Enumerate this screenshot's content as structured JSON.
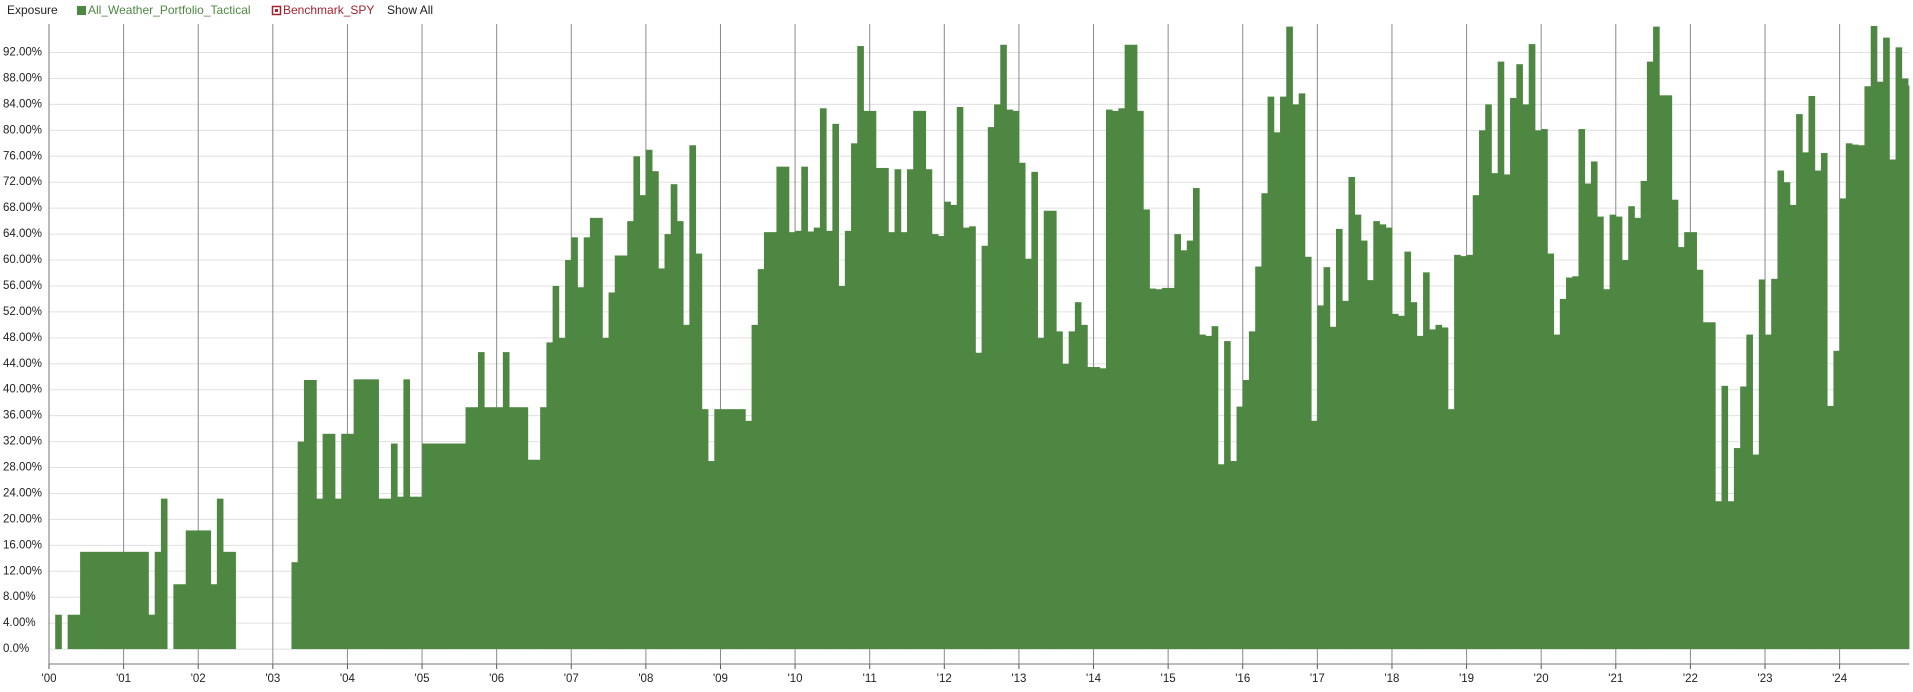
{
  "chart_data": {
    "type": "step-bar",
    "title": "Exposure",
    "series": [
      {
        "name": "All_Weather_Portfolio_Tactical",
        "color": "#4e8742",
        "values": [
          0,
          5.3,
          0,
          5.3,
          5.3,
          15,
          15,
          15,
          15,
          15,
          15,
          15,
          15,
          15,
          15,
          15,
          5.3,
          15,
          23.2,
          0,
          10,
          10,
          18.3,
          18.3,
          18.3,
          18.3,
          10,
          23.2,
          15,
          15,
          0,
          0,
          0,
          0,
          0,
          0,
          0,
          0,
          0,
          13.4,
          32,
          41.5,
          41.5,
          23.2,
          33.2,
          33.2,
          23.2,
          33.2,
          33.2,
          41.6,
          41.6,
          41.6,
          41.6,
          23.2,
          23.2,
          31.7,
          23.5,
          41.6,
          23.5,
          23.5,
          31.7,
          31.7,
          31.7,
          31.7,
          31.7,
          31.7,
          31.7,
          37.3,
          37.3,
          45.8,
          37.3,
          37.3,
          37.3,
          45.8,
          37.3,
          37.3,
          37.3,
          29.2,
          29.2,
          37.3,
          47.3,
          56,
          48,
          60,
          63.5,
          55.8,
          63.5,
          66.5,
          66.5,
          48,
          55,
          60.7,
          60.7,
          66,
          76,
          70,
          77,
          73.7,
          58.7,
          64,
          71.7,
          66,
          50,
          77.7,
          61,
          37,
          29,
          37,
          37,
          37,
          37,
          37,
          35.2,
          50,
          58.6,
          64.3,
          64.3,
          74.4,
          74.4,
          64.3,
          64.5,
          74.4,
          64.4,
          65,
          83.4,
          64.5,
          81,
          56,
          64.5,
          78,
          93,
          83,
          83,
          74.2,
          74.2,
          64.3,
          74,
          64.3,
          74,
          83,
          83,
          74,
          64,
          63.7,
          69,
          68.5,
          83.6,
          65,
          65.2,
          45.7,
          62.2,
          80.5,
          84,
          93.2,
          83.2,
          83,
          75,
          60.2,
          73.6,
          48,
          67.6,
          67.6,
          49,
          44,
          49,
          53.5,
          50,
          43.5,
          43.5,
          43.3,
          83.2,
          83,
          83.4,
          93.2,
          93.2,
          83,
          67.8,
          55.6,
          55.5,
          55.7,
          55.7,
          64,
          61.5,
          63,
          71.1,
          48.5,
          48.3,
          49.8,
          28.5,
          47.5,
          29,
          37.4,
          41.5,
          49,
          59,
          70.3,
          85.2,
          79.7,
          85.2,
          96,
          84,
          85.7,
          60.5,
          35.2,
          53,
          58.9,
          49.7,
          64.8,
          53.7,
          72.8,
          67,
          63,
          56.9,
          66,
          65.5,
          65,
          51.7,
          51.4,
          61.3,
          53.5,
          48.3,
          58.1,
          49.3,
          50,
          49.6,
          37,
          60.8,
          60.6,
          60.8,
          70,
          80,
          84,
          73.4,
          90.6,
          73.2,
          85,
          90.2,
          84,
          93.3,
          80,
          80.2,
          61,
          48.5,
          54,
          57.3,
          57.5,
          80.2,
          71.8,
          75.2,
          66.7,
          55.5,
          67,
          66.7,
          60,
          68.3,
          66.5,
          72.2,
          90.6,
          96,
          85.4,
          85.4,
          69.3,
          62,
          64.3,
          64.3,
          58.5,
          50.4,
          50.4,
          22.8,
          40.6,
          22.8,
          31,
          40.5,
          48.5,
          30,
          57,
          48.5,
          57.1,
          73.8,
          72,
          68.5,
          82.5,
          76.6,
          85.3,
          73.8,
          76.5,
          37.5,
          46,
          69.5,
          78,
          77.8,
          77.7,
          86.8,
          96.1,
          87.5,
          94.3,
          75.5,
          92.8,
          88,
          86.9
        ]
      }
    ],
    "x": [
      2000,
      2000.083,
      2000.167,
      2000.25,
      2000.333,
      2000.417,
      2000.5,
      2000.583,
      2000.667,
      2000.75,
      2000.833,
      2000.917,
      2001,
      2001.083,
      2001.167,
      2001.25,
      2001.333,
      2001.417,
      2001.5,
      2001.583,
      2001.667,
      2001.75,
      2001.833,
      2001.917,
      2002,
      2002.083,
      2002.167,
      2002.25,
      2002.333,
      2002.417,
      2002.5,
      2002.583,
      2002.667,
      2002.75,
      2002.833,
      2002.917,
      2003,
      2003.083,
      2003.167,
      2003.25,
      2003.333,
      2003.417,
      2003.5,
      2003.583,
      2003.667,
      2003.75,
      2003.833,
      2003.917,
      2004,
      2004.083,
      2004.167,
      2004.25,
      2004.333,
      2004.417,
      2004.5,
      2004.583,
      2004.667,
      2004.75,
      2004.833,
      2004.917,
      2005,
      2005.083,
      2005.167,
      2005.25,
      2005.333,
      2005.417,
      2005.5,
      2005.583,
      2005.667,
      2005.75,
      2005.833,
      2005.917,
      2006,
      2006.083,
      2006.167,
      2006.25,
      2006.333,
      2006.417,
      2006.5,
      2006.583,
      2006.667,
      2006.75,
      2006.833,
      2006.917,
      2007,
      2007.083,
      2007.167,
      2007.25,
      2007.333,
      2007.417,
      2007.5,
      2007.583,
      2007.667,
      2007.75,
      2007.833,
      2007.917,
      2008,
      2008.083,
      2008.167,
      2008.25,
      2008.333,
      2008.417,
      2008.5,
      2008.583,
      2008.667,
      2008.75,
      2008.833,
      2008.917,
      2009,
      2009.083,
      2009.167,
      2009.25,
      2009.333,
      2009.417,
      2009.5,
      2009.583,
      2009.667,
      2009.75,
      2009.833,
      2009.917,
      2010,
      2010.083,
      2010.167,
      2010.25,
      2010.333,
      2010.417,
      2010.5,
      2010.583,
      2010.667,
      2010.75,
      2010.833,
      2010.917,
      2011,
      2011.083,
      2011.167,
      2011.25,
      2011.333,
      2011.417,
      2011.5,
      2011.583,
      2011.667,
      2011.75,
      2011.833,
      2011.917,
      2012,
      2012.083,
      2012.167,
      2012.25,
      2012.333,
      2012.417,
      2012.5,
      2012.583,
      2012.667,
      2012.75,
      2012.833,
      2012.917,
      2013,
      2013.083,
      2013.167,
      2013.25,
      2013.333,
      2013.417,
      2013.5,
      2013.583,
      2013.667,
      2013.75,
      2013.833,
      2013.917,
      2014,
      2014.083,
      2014.167,
      2014.25,
      2014.333,
      2014.417,
      2014.5,
      2014.583,
      2014.667,
      2014.75,
      2014.833,
      2014.917,
      2015,
      2015.083,
      2015.167,
      2015.25,
      2015.333,
      2015.417,
      2015.5,
      2015.583,
      2015.667,
      2015.75,
      2015.833,
      2015.917,
      2016,
      2016.083,
      2016.167,
      2016.25,
      2016.333,
      2016.417,
      2016.5,
      2016.583,
      2016.667,
      2016.75,
      2016.833,
      2016.917,
      2017,
      2017.083,
      2017.167,
      2017.25,
      2017.333,
      2017.417,
      2017.5,
      2017.583,
      2017.667,
      2017.75,
      2017.833,
      2017.917,
      2018,
      2018.083,
      2018.167,
      2018.25,
      2018.333,
      2018.417,
      2018.5,
      2018.583,
      2018.667,
      2018.75,
      2018.833,
      2018.917,
      2019,
      2019.083,
      2019.167,
      2019.25,
      2019.333,
      2019.417,
      2019.5,
      2019.583,
      2019.667,
      2019.75,
      2019.833,
      2019.917,
      2020,
      2020.083,
      2020.167,
      2020.25,
      2020.333,
      2020.417,
      2020.5,
      2020.583,
      2020.667,
      2020.75,
      2020.833,
      2020.917,
      2021,
      2021.083,
      2021.167,
      2021.25,
      2021.333,
      2021.417,
      2021.5,
      2021.583,
      2021.667,
      2021.75,
      2021.833,
      2021.917,
      2022,
      2022.083,
      2022.167,
      2022.25,
      2022.333,
      2022.417,
      2022.5,
      2022.583,
      2022.667,
      2022.75,
      2022.833,
      2022.917,
      2023,
      2023.083,
      2023.167,
      2023.25,
      2023.333,
      2023.417,
      2023.5,
      2023.583,
      2023.667,
      2023.75,
      2023.833,
      2023.917,
      2024,
      2024.083,
      2024.167,
      2024.25,
      2024.333,
      2024.417,
      2024.5,
      2024.583,
      2024.667,
      2024.75,
      2024.833,
      2024.917
    ],
    "hidden_series": [
      {
        "name": "Benchmark_SPY",
        "color": "#a3232d"
      }
    ],
    "show_all_label": "Show All",
    "xlim": [
      2000,
      2024.93
    ],
    "ylim": [
      -2.3,
      96.4
    ],
    "xticks": [
      {
        "value": 2000,
        "label": "'00"
      },
      {
        "value": 2001,
        "label": "'01"
      },
      {
        "value": 2002,
        "label": "'02"
      },
      {
        "value": 2003,
        "label": "'03"
      },
      {
        "value": 2004,
        "label": "'04"
      },
      {
        "value": 2005,
        "label": "'05"
      },
      {
        "value": 2006,
        "label": "'06"
      },
      {
        "value": 2007,
        "label": "'07"
      },
      {
        "value": 2008,
        "label": "'08"
      },
      {
        "value": 2009,
        "label": "'09"
      },
      {
        "value": 2010,
        "label": "'10"
      },
      {
        "value": 2011,
        "label": "'11"
      },
      {
        "value": 2012,
        "label": "'12"
      },
      {
        "value": 2013,
        "label": "'13"
      },
      {
        "value": 2014,
        "label": "'14"
      },
      {
        "value": 2015,
        "label": "'15"
      },
      {
        "value": 2016,
        "label": "'16"
      },
      {
        "value": 2017,
        "label": "'17"
      },
      {
        "value": 2018,
        "label": "'18"
      },
      {
        "value": 2019,
        "label": "'19"
      },
      {
        "value": 2020,
        "label": "'20"
      },
      {
        "value": 2021,
        "label": "'21"
      },
      {
        "value": 2022,
        "label": "'22"
      },
      {
        "value": 2023,
        "label": "'23"
      },
      {
        "value": 2024,
        "label": "'24"
      }
    ],
    "yticks": [
      {
        "value": 0,
        "label": "0.0%"
      },
      {
        "value": 4,
        "label": "4.00%"
      },
      {
        "value": 8,
        "label": "8.00%"
      },
      {
        "value": 12,
        "label": "12.00%"
      },
      {
        "value": 16,
        "label": "16.00%"
      },
      {
        "value": 20,
        "label": "20.00%"
      },
      {
        "value": 24,
        "label": "24.00%"
      },
      {
        "value": 28,
        "label": "28.00%"
      },
      {
        "value": 32,
        "label": "32.00%"
      },
      {
        "value": 36,
        "label": "36.00%"
      },
      {
        "value": 40,
        "label": "40.00%"
      },
      {
        "value": 44,
        "label": "44.00%"
      },
      {
        "value": 48,
        "label": "48.00%"
      },
      {
        "value": 52,
        "label": "52.00%"
      },
      {
        "value": 56,
        "label": "56.00%"
      },
      {
        "value": 60,
        "label": "60.00%"
      },
      {
        "value": 64,
        "label": "64.00%"
      },
      {
        "value": 68,
        "label": "68.00%"
      },
      {
        "value": 72,
        "label": "72.00%"
      },
      {
        "value": 76,
        "label": "76.00%"
      },
      {
        "value": 80,
        "label": "80.00%"
      },
      {
        "value": 84,
        "label": "84.00%"
      },
      {
        "value": 88,
        "label": "88.00%"
      },
      {
        "value": 92,
        "label": "92.00%"
      }
    ],
    "grid": true
  }
}
